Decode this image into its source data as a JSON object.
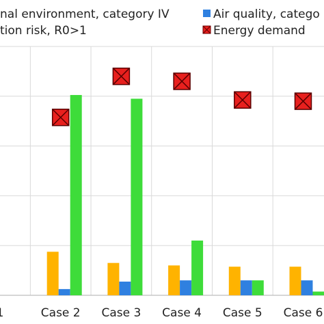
{
  "chart_data": {
    "type": "bar",
    "title": "",
    "xlabel": "",
    "ylabel": "",
    "categories": [
      "1",
      "Case 2",
      "Case 3",
      "Case 4",
      "Case 5",
      "Case 6"
    ],
    "ylim": [
      0,
      100
    ],
    "grid": true,
    "series": [
      {
        "name": "nal environment, category IV",
        "kind": "bar",
        "color": "#FFB300",
        "values": [
          null,
          17.5,
          13,
          12,
          11.5,
          11.5
        ]
      },
      {
        "name": "Air quality, catego",
        "kind": "bar",
        "color": "#2F80E0",
        "values": [
          null,
          2.5,
          5.5,
          6,
          6,
          6
        ]
      },
      {
        "name": "tion risk, R0>1",
        "kind": "bar",
        "color": "#3EDC3A",
        "values": [
          null,
          80.5,
          79,
          22,
          6,
          1.5
        ]
      },
      {
        "name": "Energy demand",
        "kind": "marker",
        "color": "#E8201E",
        "values": [
          null,
          71.5,
          88,
          86,
          78.5,
          78
        ]
      }
    ],
    "legend": {
      "placement": "top",
      "items": [
        {
          "label": "nal environment, category IV",
          "series": 0
        },
        {
          "label": "Air quality, catego",
          "series": 1
        },
        {
          "label": "tion risk, R0>1",
          "series": 2
        },
        {
          "label": "Energy demand",
          "series": 3
        }
      ]
    }
  }
}
